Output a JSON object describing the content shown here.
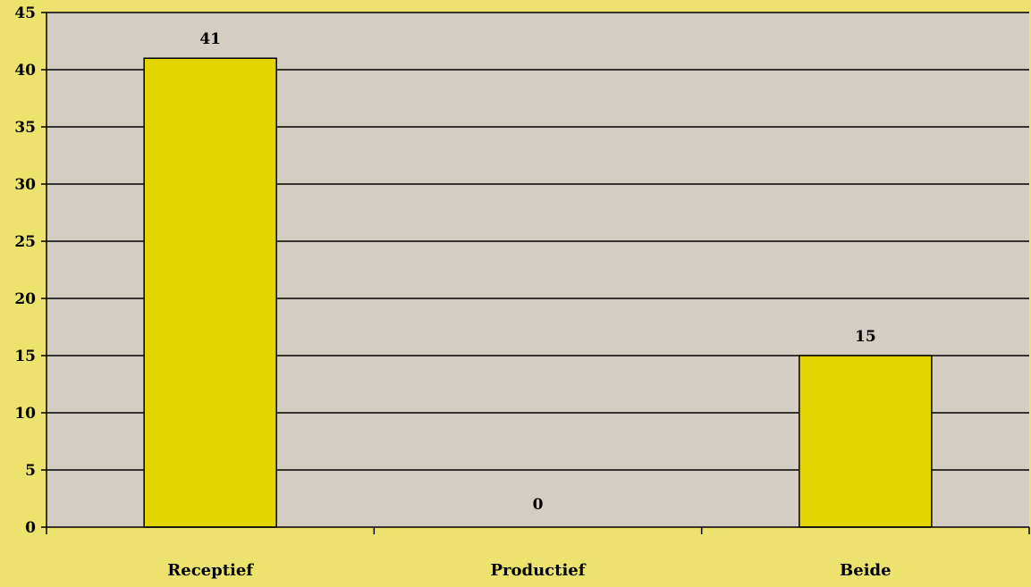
{
  "chart_data": {
    "type": "bar",
    "categories": [
      "Receptief",
      "Productief",
      "Beide"
    ],
    "values": [
      41,
      0,
      15
    ],
    "data_labels": [
      "41",
      "0",
      "15"
    ],
    "ylim": [
      0,
      45
    ],
    "yticks": [
      0,
      5,
      10,
      15,
      20,
      25,
      30,
      35,
      40,
      45
    ],
    "grid": true,
    "title": "",
    "xlabel": "",
    "ylabel": "",
    "colors": {
      "page_background": "#ede26e",
      "plot_background": "#d4cdc3",
      "bar": "#e2d500",
      "bar_stroke": "#000000",
      "grid": "#000000"
    }
  }
}
